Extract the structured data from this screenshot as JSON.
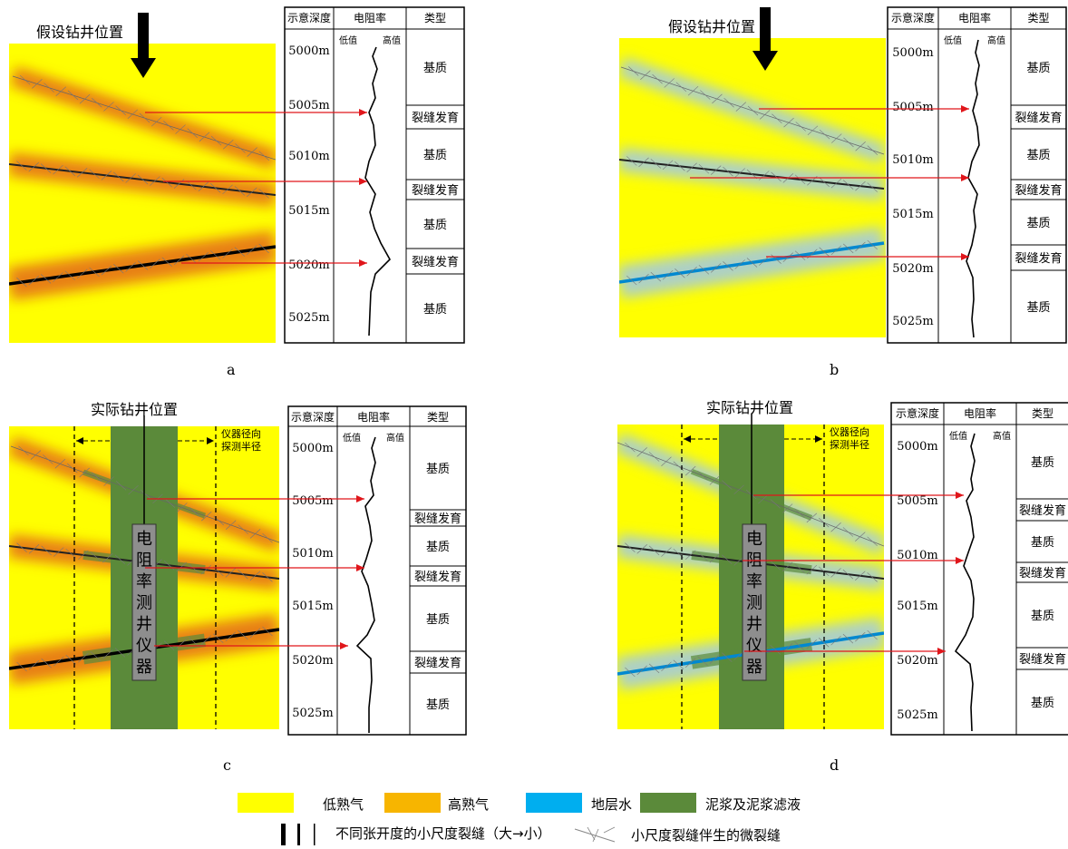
{
  "colors": {
    "low_gas": "#FFFF00",
    "high_gas": "#F7B500",
    "formation_water": "#00AEEF",
    "mud": "#5B8A3A",
    "arrow": "#E0161B"
  },
  "panels": [
    {
      "id": "a",
      "caption": "a",
      "well_label": "假设钻井位置",
      "fluid": "gas",
      "has_tool": false
    },
    {
      "id": "b",
      "caption": "b",
      "well_label": "假设钻井位置",
      "fluid": "water",
      "has_tool": false
    },
    {
      "id": "c",
      "caption": "c",
      "well_label": "实际钻井位置",
      "radius_label": [
        "仪器径向",
        "探测半径"
      ],
      "tool_label": [
        "电",
        "阻",
        "率",
        "测",
        "井",
        "仪",
        "器"
      ],
      "fluid": "gas",
      "has_tool": true
    },
    {
      "id": "d",
      "caption": "d",
      "well_label": "实际钻井位置",
      "radius_label": [
        "仪器径向",
        "探测半径"
      ],
      "tool_label": [
        "电",
        "阻",
        "率",
        "测",
        "井",
        "仪",
        "器"
      ],
      "fluid": "water",
      "has_tool": true
    }
  ],
  "table": {
    "headers": [
      "示意深度",
      "电阻率",
      "类型"
    ],
    "res_low": "低值",
    "res_high": "高值",
    "depths": [
      "5000m",
      "5005m",
      "5010m",
      "5015m",
      "5020m",
      "5025m"
    ],
    "types": [
      "基质",
      "裂缝发育",
      "基质",
      "裂缝发育",
      "基质",
      "裂缝发育",
      "基质"
    ]
  },
  "legend": {
    "low_gas": "低熟气",
    "high_gas": "高熟气",
    "formation_water": "地层水",
    "mud": "泥浆及泥浆滤液",
    "fracture_lines": "不同张开度的小尺度裂缝（大→小）",
    "micro_fracture": "小尺度裂缝伴生的微裂缝"
  }
}
